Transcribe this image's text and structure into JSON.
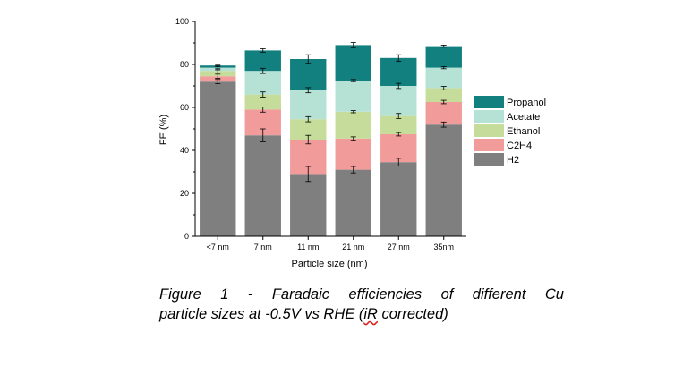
{
  "chart_data": {
    "type": "bar",
    "stacked": true,
    "categories": [
      "<7 nm",
      "7 nm",
      "11 nm",
      "21 nm",
      "27 nm",
      "35nm"
    ],
    "xlabel": "Particle size (nm)",
    "ylabel": "FE (%)",
    "ylim": [
      0,
      100
    ],
    "yticks": [
      0,
      20,
      40,
      60,
      80,
      100
    ],
    "grid": false,
    "legend_position": "right",
    "series": [
      {
        "name": "H2",
        "color": "#7f7f7f",
        "values": [
          72,
          47,
          29,
          31,
          34.5,
          52
        ],
        "errors": [
          1.0,
          3.0,
          3.5,
          1.5,
          1.8,
          1.2
        ]
      },
      {
        "name": "C2H4",
        "color": "#f19b9b",
        "values": [
          2.5,
          12,
          16,
          14.5,
          13,
          10.5
        ],
        "errors": [
          1.0,
          1.2,
          2.0,
          0.8,
          0.8,
          0.8
        ]
      },
      {
        "name": "Ethanol",
        "color": "#c6dc9a",
        "values": [
          2.5,
          7,
          9.5,
          12.5,
          8.5,
          6.5
        ],
        "errors": [
          1.0,
          1.2,
          1.2,
          0.5,
          1.2,
          0.8
        ]
      },
      {
        "name": "Acetate",
        "color": "#b6e2d6",
        "values": [
          1.5,
          11,
          13.5,
          14.5,
          14,
          9.5
        ],
        "errors": [
          1.0,
          1.2,
          1.2,
          0.5,
          1.2,
          0.5
        ]
      },
      {
        "name": "Propanol",
        "color": "#138080",
        "values": [
          1.0,
          9.5,
          14.5,
          16.5,
          13,
          10
        ],
        "errors": [
          0.5,
          0.8,
          2.0,
          1.2,
          1.5,
          0.5
        ]
      }
    ]
  },
  "caption": {
    "words_line1": [
      "Figure",
      "1",
      "-",
      "Faradaic",
      "efficiencies",
      "of",
      "different",
      "Cu"
    ],
    "line2_before": "particle sizes at -0.5V vs RHE (",
    "line2_underlined": "iR",
    "line2_after": " corrected)"
  }
}
